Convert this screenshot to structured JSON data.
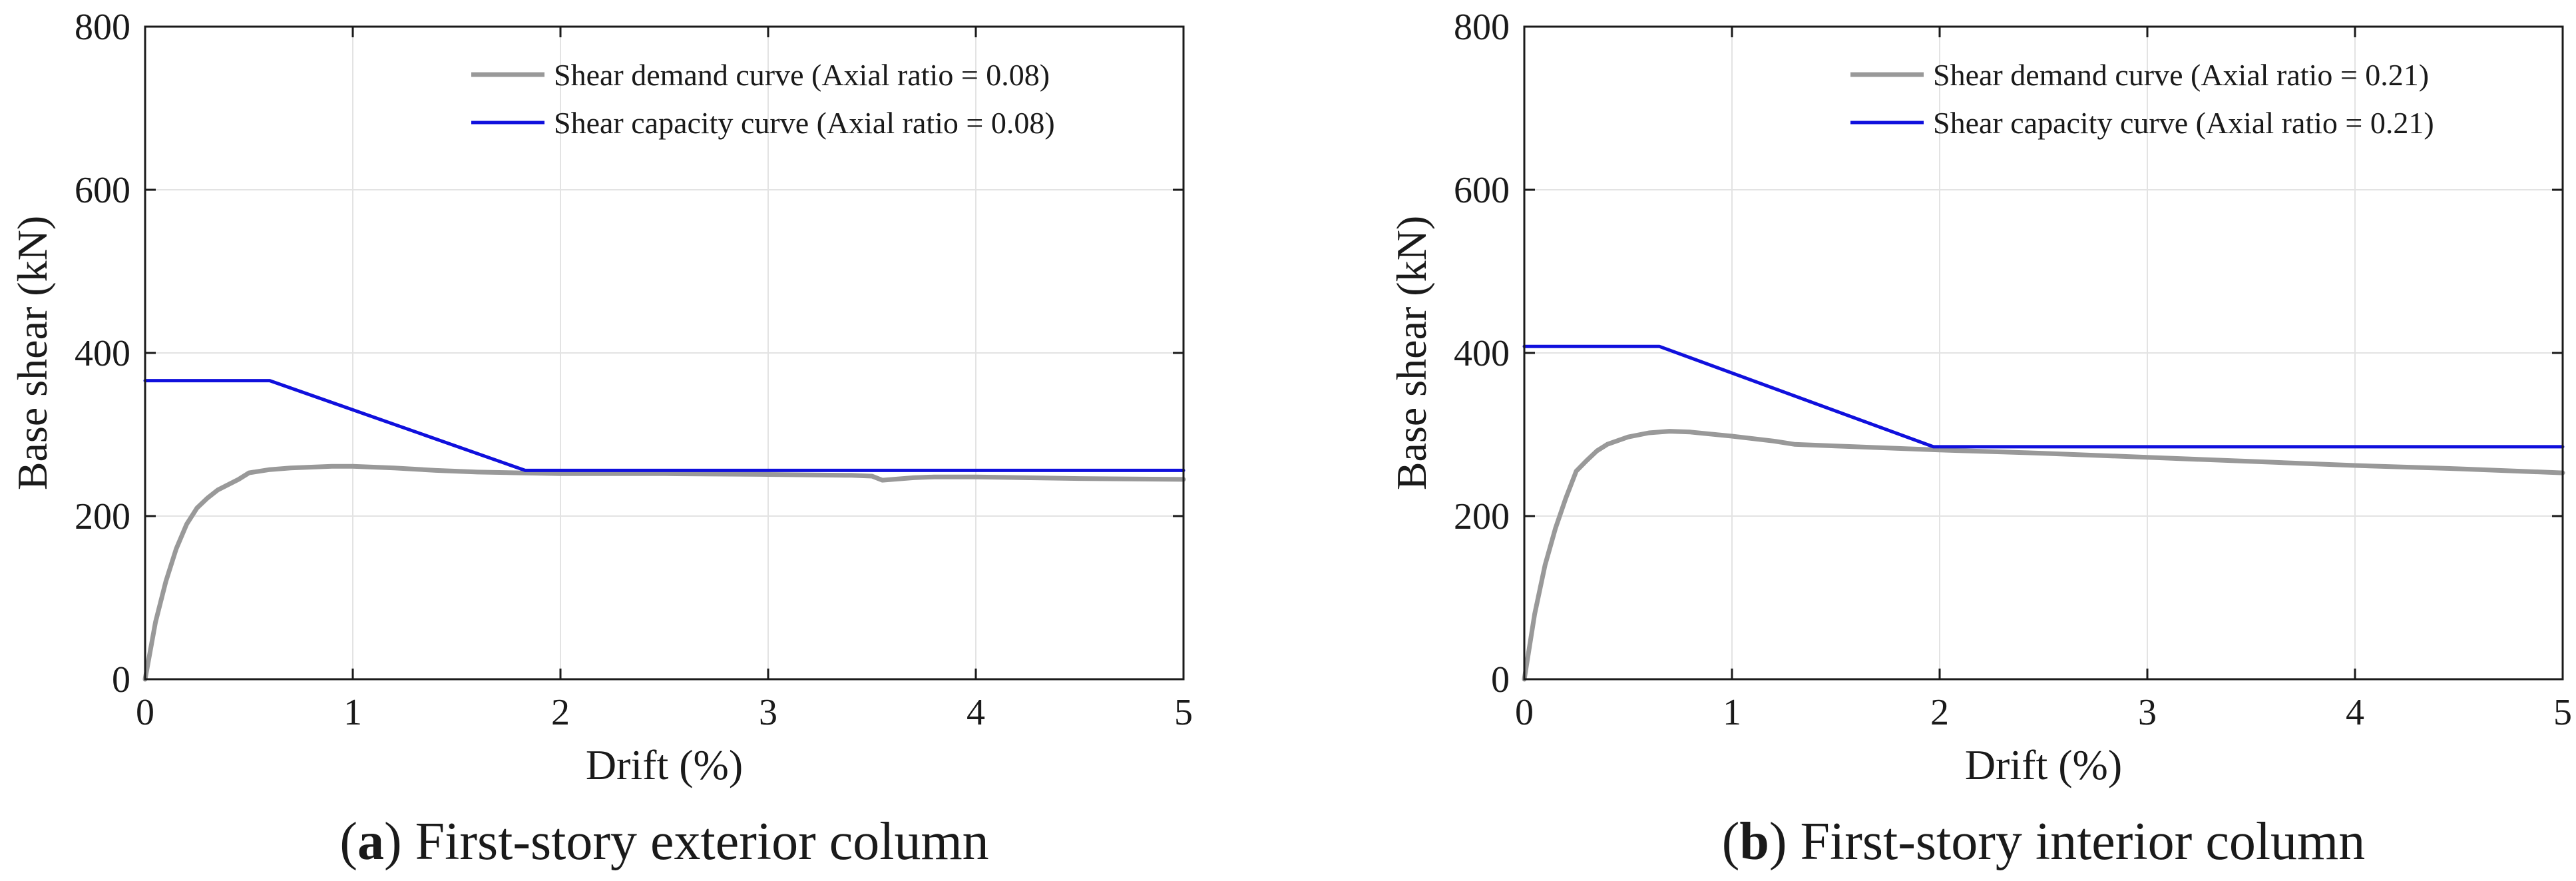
{
  "colors": {
    "demand": "#999999",
    "capacity": "#1010dd",
    "axis": "#1a1a1a",
    "grid": "#e3e3e3"
  },
  "chart_data": [
    {
      "type": "line",
      "panel": "a",
      "caption_letter": "a",
      "caption_text": "First-story exterior column",
      "caption_open": "(",
      "caption_close": ")",
      "xlabel": "Drift (%)",
      "ylabel": "Base shear (kN)",
      "xlim": [
        0,
        5
      ],
      "ylim": [
        0,
        800
      ],
      "xticks": [
        0,
        1,
        2,
        3,
        4,
        5
      ],
      "yticks": [
        0,
        200,
        400,
        600,
        800
      ],
      "grid": true,
      "legend_position": "top-right",
      "series": [
        {
          "name": "Shear demand curve (Axial ratio = 0.08)",
          "color_key": "demand",
          "x": [
            0,
            0.05,
            0.1,
            0.15,
            0.2,
            0.25,
            0.3,
            0.35,
            0.45,
            0.5,
            0.6,
            0.7,
            0.8,
            0.9,
            1.0,
            1.2,
            1.4,
            1.6,
            1.8,
            2.0,
            2.5,
            3.0,
            3.4,
            3.5,
            3.55,
            3.6,
            3.7,
            3.8,
            4.0,
            4.5,
            5.0
          ],
          "y": [
            0,
            70,
            120,
            160,
            190,
            210,
            222,
            232,
            245,
            253,
            257,
            259,
            260,
            261,
            261,
            259,
            256,
            254,
            253,
            252,
            252,
            251,
            250,
            249,
            244,
            245,
            247,
            248,
            248,
            246,
            245
          ]
        },
        {
          "name": "Shear capacity curve (Axial ratio = 0.08)",
          "color_key": "capacity",
          "x": [
            0,
            0.6,
            1.83,
            5.0
          ],
          "y": [
            366,
            366,
            256,
            256
          ]
        }
      ]
    },
    {
      "type": "line",
      "panel": "b",
      "caption_letter": "b",
      "caption_text": "First-story interior column",
      "caption_open": "(",
      "caption_close": ")",
      "xlabel": "Drift (%)",
      "ylabel": "Base shear (kN)",
      "xlim": [
        0,
        5
      ],
      "ylim": [
        0,
        800
      ],
      "xticks": [
        0,
        1,
        2,
        3,
        4,
        5
      ],
      "yticks": [
        0,
        200,
        400,
        600,
        800
      ],
      "grid": true,
      "legend_position": "top-right",
      "series": [
        {
          "name": "Shear demand curve (Axial ratio = 0.21)",
          "color_key": "demand",
          "x": [
            0,
            0.05,
            0.1,
            0.15,
            0.2,
            0.25,
            0.3,
            0.35,
            0.4,
            0.5,
            0.6,
            0.7,
            0.8,
            1.0,
            1.2,
            1.3,
            1.5,
            2.0,
            2.5,
            3.0,
            3.5,
            4.0,
            4.5,
            5.0
          ],
          "y": [
            0,
            80,
            140,
            185,
            222,
            255,
            268,
            280,
            288,
            297,
            302,
            304,
            303,
            298,
            292,
            288,
            286,
            281,
            277,
            272,
            267,
            262,
            258,
            253
          ]
        },
        {
          "name": "Shear capacity curve (Axial ratio = 0.21)",
          "color_key": "capacity",
          "x": [
            0,
            0.65,
            1.97,
            5.0
          ],
          "y": [
            408,
            408,
            285,
            285
          ]
        }
      ]
    }
  ]
}
